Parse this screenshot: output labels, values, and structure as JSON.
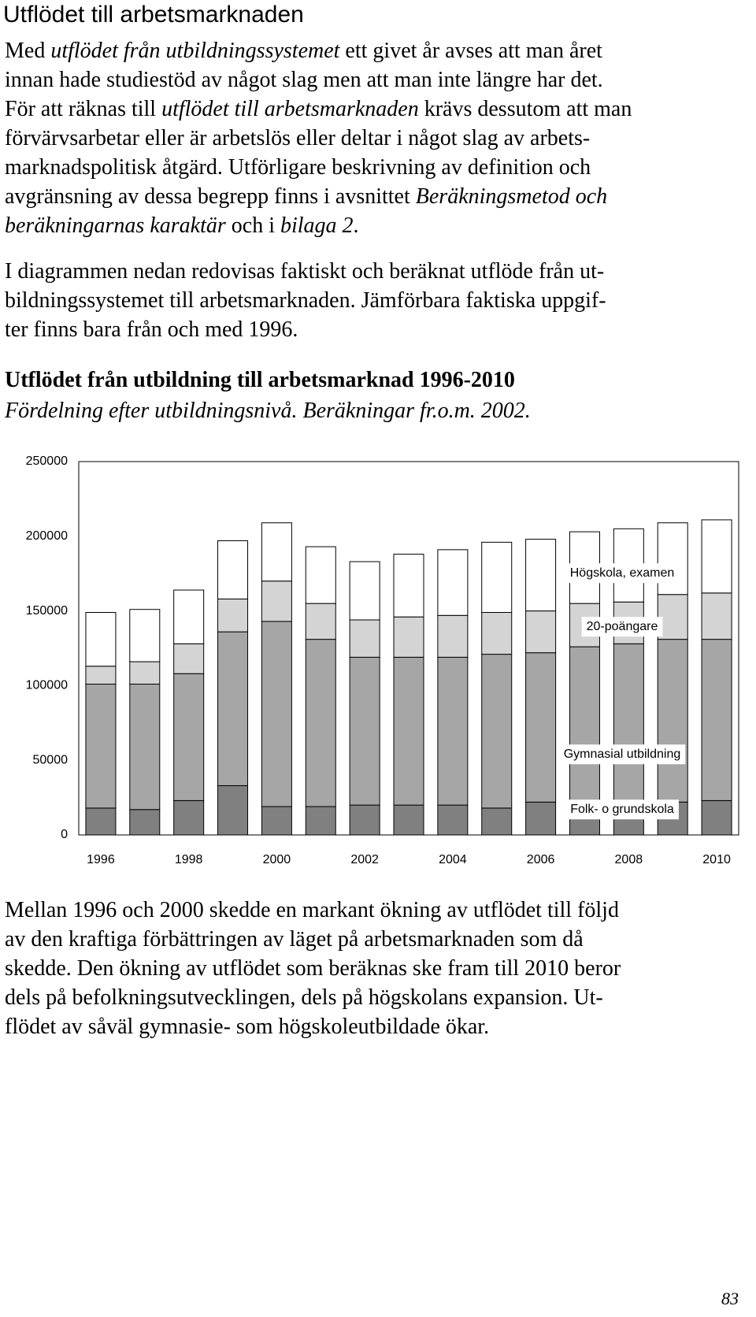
{
  "header": {
    "title": "Utflödet till arbetsmarknaden"
  },
  "intro": [
    [
      [
        "Med ",
        {
          "text": "utflödet från utbildningssystemet",
          "italic": true
        },
        " ett givet år avses att man året"
      ],
      [
        "innan hade studiestöd av något slag men att man inte längre har det."
      ],
      [
        "För att räknas till ",
        {
          "text": "utflödet till arbetsmarknaden",
          "italic": true
        },
        " krävs dessutom att man"
      ],
      [
        "förvärvsarbetar eller är arbetslös eller deltar i något slag av arbets-"
      ],
      [
        "marknadspolitisk åtgärd. Utförligare beskrivning av definition och"
      ],
      [
        "avgränsning av dessa begrepp finns i avsnittet ",
        {
          "text": "Beräkningsmetod och",
          "italic": true
        }
      ],
      [
        {
          "text": "beräkningarnas karaktär",
          "italic": true
        },
        " och i ",
        {
          "text": "bilaga 2",
          "italic": true
        },
        "."
      ]
    ],
    [
      [
        "I diagrammen nedan redovisas faktiskt och beräknat utflöde från ut-"
      ],
      [
        "bildningssystemet till arbetsmarknaden. Jämförbara faktiska uppgif-"
      ],
      [
        "ter finns bara från och med 1996."
      ]
    ]
  ],
  "chart_data": {
    "type": "stacked-bar",
    "title": "Utflödet från utbildning till arbetsmarknad 1996-2010",
    "subtitle": "Fördelning efter utbildningsnivå. Beräkningar fr.o.m. 2002.",
    "categories": [
      "1996",
      null,
      "1998",
      null,
      "2000",
      null,
      "2002",
      null,
      "2004",
      null,
      "2006",
      null,
      "2008",
      null,
      "2010"
    ],
    "series": [
      {
        "name": "Folk- o grundskola",
        "color": "#808080",
        "values": [
          18000,
          17000,
          23000,
          33000,
          19000,
          19000,
          20000,
          20000,
          20000,
          18000,
          22000,
          21000,
          21000,
          22000,
          23000
        ]
      },
      {
        "name": "Gymnasial utbildning",
        "color": "#a6a6a6",
        "values": [
          83000,
          84000,
          85000,
          103000,
          124000,
          112000,
          99000,
          99000,
          99000,
          103000,
          100000,
          105000,
          107000,
          109000,
          108000
        ]
      },
      {
        "name": "20-poängare",
        "color": "#d4d4d4",
        "values": [
          12000,
          15000,
          20000,
          22000,
          27000,
          24000,
          25000,
          27000,
          28000,
          28000,
          28000,
          29000,
          28000,
          30000,
          31000
        ]
      },
      {
        "name": "Högskola, examen",
        "color": "#ffffff",
        "values": [
          36000,
          35000,
          36000,
          39000,
          39000,
          38000,
          39000,
          42000,
          44000,
          47000,
          48000,
          48000,
          49000,
          48000,
          49000
        ]
      }
    ],
    "ylim": [
      0,
      250000
    ],
    "yticks": [
      0,
      50000,
      100000,
      150000,
      200000,
      250000
    ],
    "grid": false
  },
  "conclusion": [
    [
      "Mellan 1996 och 2000 skedde en markant ökning av utflödet till följd"
    ],
    [
      "av den kraftiga förbättringen av läget på arbetsmarknaden som då"
    ],
    [
      "skedde. Den ökning av utflödet som beräknas ske fram till 2010 beror"
    ],
    [
      "dels på befolkningsutvecklingen, dels på högskolans expansion. Ut-"
    ],
    [
      "flödet av såväl gymnasie- som högskoleutbildade ökar."
    ]
  ],
  "page_number": "83"
}
